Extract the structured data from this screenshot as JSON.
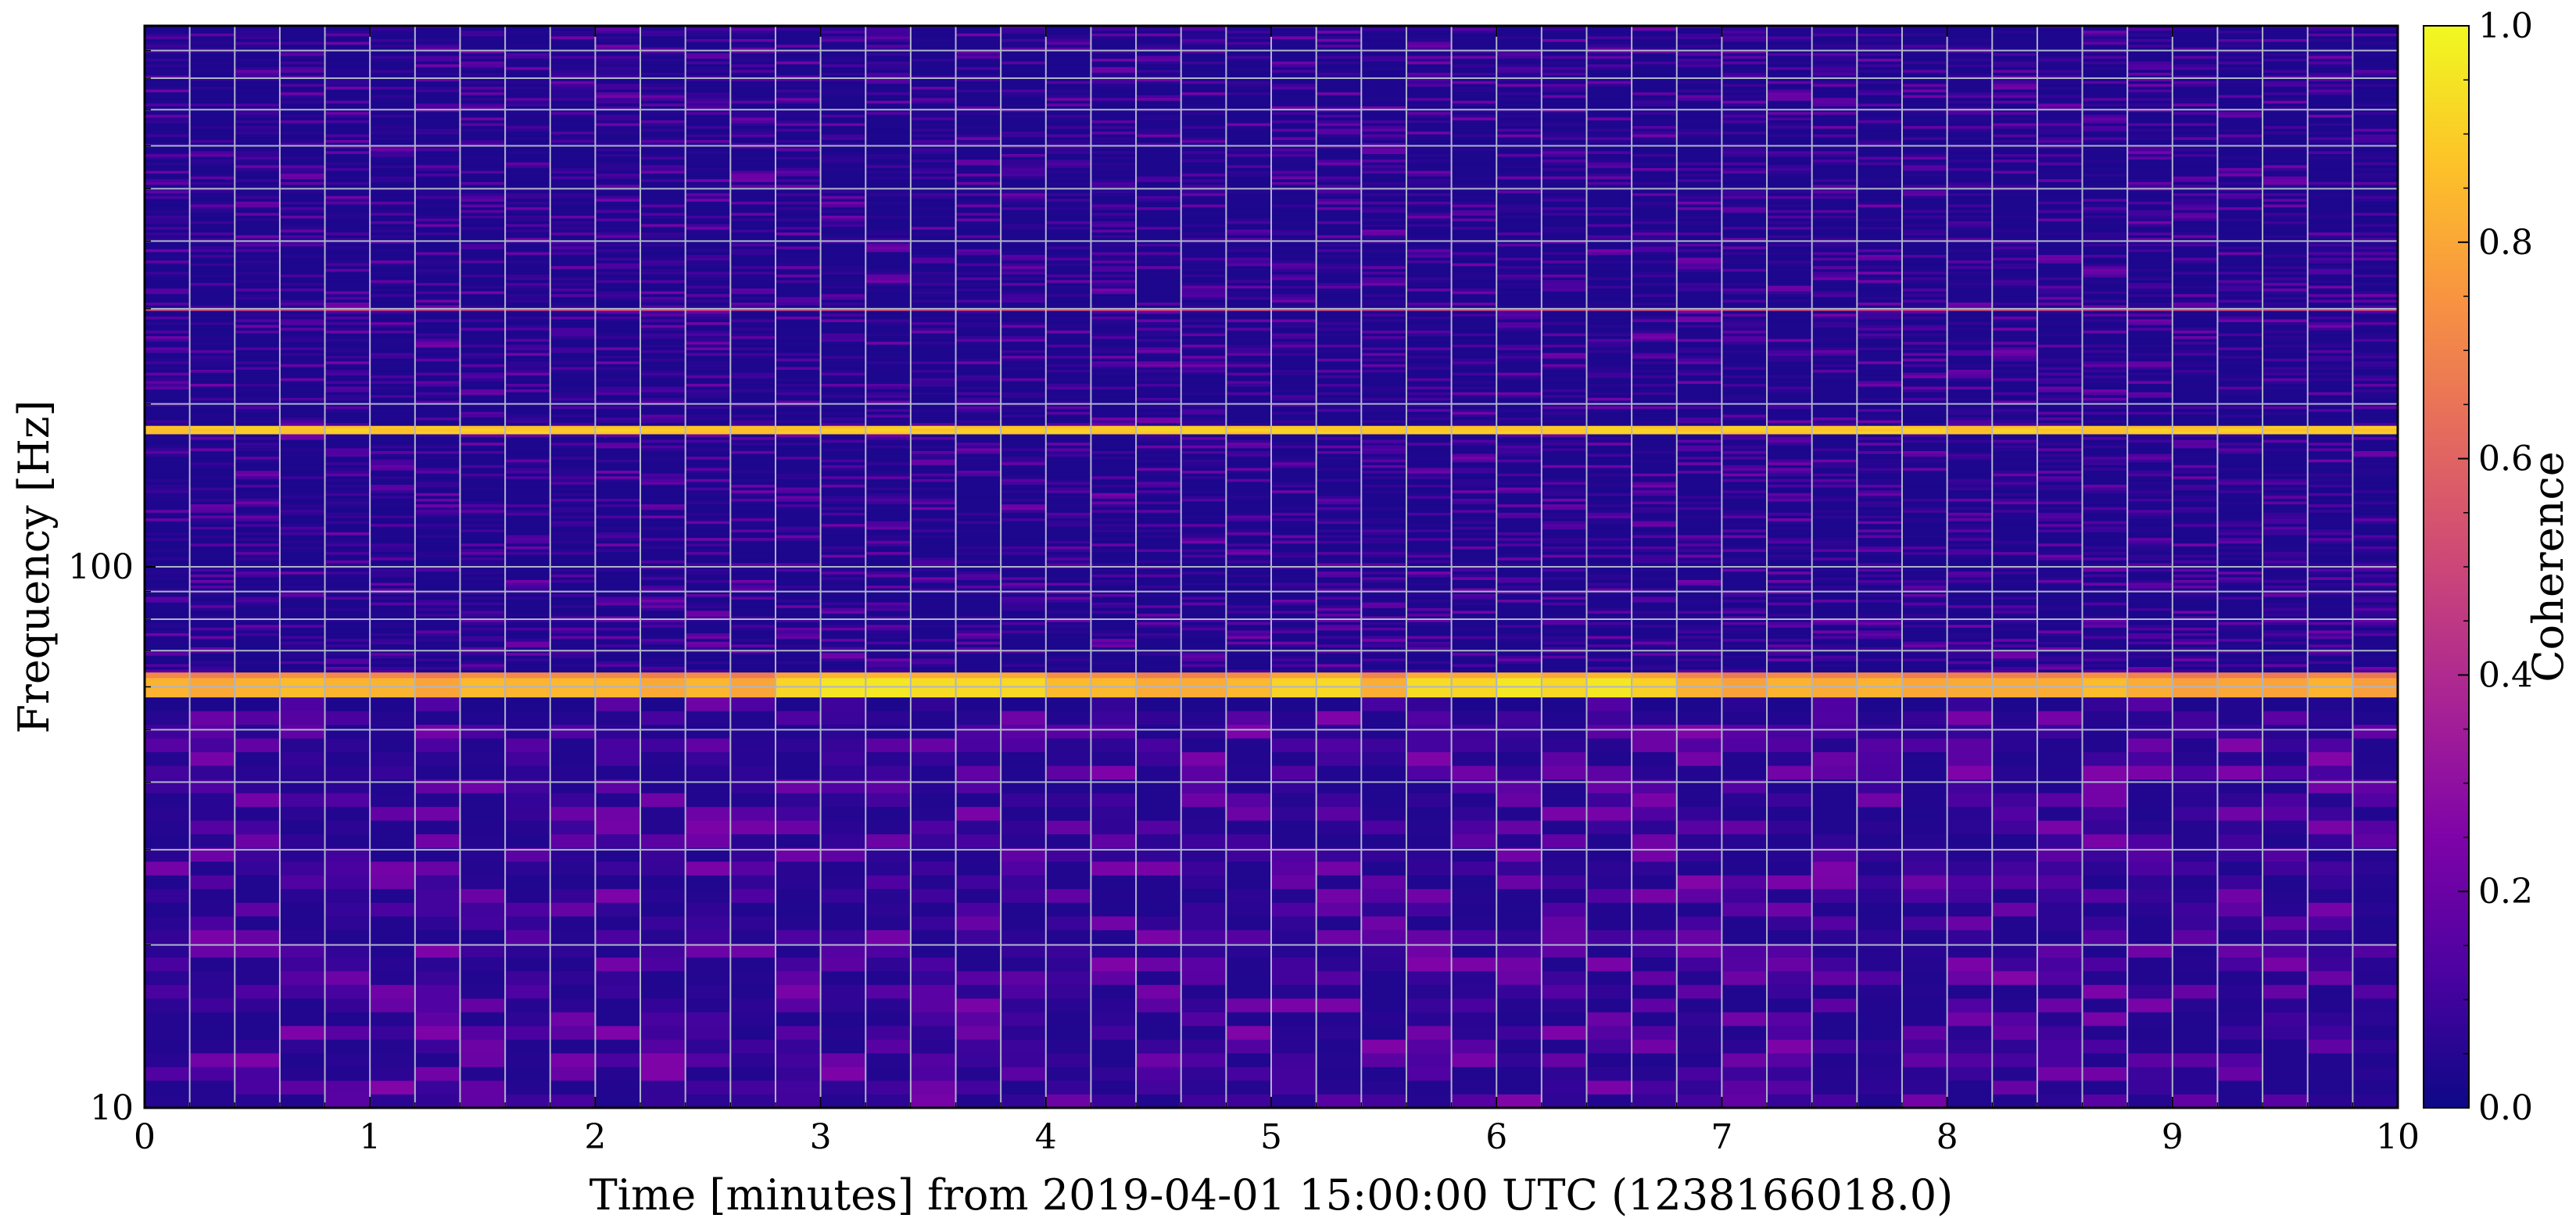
{
  "chart_data": {
    "type": "heatmap",
    "xlabel": "Time [minutes] from 2019-04-01 15:00:00 UTC (1238166018.0)",
    "ylabel": "Frequency [Hz]",
    "colorbar_label": "Coherence",
    "x_ticks": [
      "0",
      "1",
      "2",
      "3",
      "4",
      "5",
      "6",
      "7",
      "8",
      "9",
      "10"
    ],
    "y_ticks": [
      "10",
      "100"
    ],
    "colorbar_ticks": [
      "0.0",
      "0.2",
      "0.4",
      "0.6",
      "0.8",
      "1.0"
    ],
    "xlim": [
      0,
      10
    ],
    "ylim": [
      10,
      1000
    ],
    "yscale": "log",
    "clim": [
      0,
      1
    ],
    "colormap": "plasma",
    "grid": true,
    "time_bins": 50,
    "features": [
      {
        "frequency_hz": 60,
        "coherence_range": [
          0.75,
          0.97
        ]
      },
      {
        "frequency_hz": 180,
        "coherence": 0.9
      },
      {
        "frequency_hz": 300,
        "coherence": 0.5
      },
      {
        "frequency_hz_below": 60,
        "background_coherence": [
          0.02,
          0.3
        ]
      },
      {
        "frequency_hz_above": 60,
        "background_coherence": [
          0.0,
          0.12
        ]
      }
    ]
  }
}
